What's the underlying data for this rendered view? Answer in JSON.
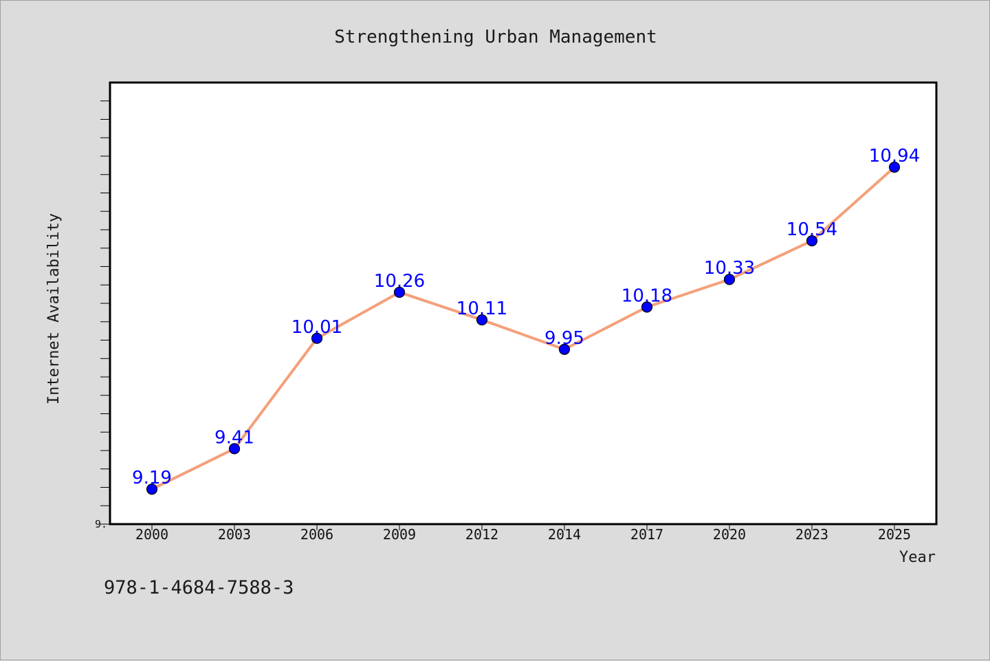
{
  "chart_data": {
    "type": "line",
    "title": "Strengthening Urban Management",
    "xlabel": "Year",
    "ylabel": "Internet Availability",
    "categories": [
      "2000",
      "2003",
      "2006",
      "2009",
      "2012",
      "2014",
      "2017",
      "2020",
      "2023",
      "2025"
    ],
    "series": [
      {
        "values": [
          9.19,
          9.41,
          10.01,
          10.26,
          10.11,
          9.95,
          10.18,
          10.33,
          10.54,
          10.94
        ],
        "line_color": "#f4a07a",
        "marker_color": "#0000ff",
        "label_color": "#0000ff"
      }
    ],
    "data_labels": [
      "9.19",
      "9.41",
      "10.01",
      "10.26",
      "10.11",
      "9.95",
      "10.18",
      "10.33",
      "10.54",
      "10.94"
    ],
    "ytick_label": "9.",
    "ylim": [
      9.0,
      11.4
    ],
    "grid": false,
    "legend": "none"
  },
  "footer_text": "978-1-4684-7588-3",
  "colors": {
    "background": "#dcdcdc",
    "plot_background": "#ffffff",
    "axis": "#000000"
  }
}
